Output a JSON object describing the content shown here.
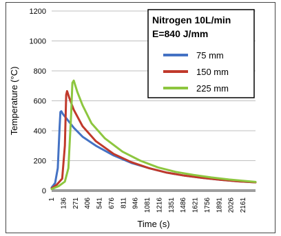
{
  "chart_data": {
    "type": "line",
    "title": "",
    "xlabel": "Time (s)",
    "ylabel": "Temperature  (°C)",
    "xlim": [
      1,
      2300
    ],
    "ylim": [
      0,
      1200
    ],
    "x_tick_labels": [
      "1",
      "136",
      "271",
      "406",
      "541",
      "676",
      "811",
      "946",
      "1081",
      "1216",
      "1351",
      "1486",
      "1621",
      "1756",
      "1891",
      "2026",
      "2161"
    ],
    "y_tick_labels": [
      "0",
      "200",
      "400",
      "600",
      "800",
      "1000",
      "1200"
    ],
    "y_ticks": [
      0,
      200,
      400,
      600,
      800,
      1000,
      1200
    ],
    "grid": "horizontal",
    "legend_position": "top-right",
    "legend": {
      "line1": "Nitrogen 10L/min",
      "line2": "E=840 J/mm"
    },
    "series": [
      {
        "name": "75 mm",
        "color": "#4472C4",
        "x": [
          1,
          40,
          70,
          90,
          100,
          110,
          130,
          170,
          250,
          350,
          500,
          700,
          900,
          1100,
          1300,
          1500,
          1700,
          1900,
          2100,
          2300
        ],
        "y": [
          20,
          50,
          150,
          420,
          525,
          530,
          510,
          480,
          420,
          360,
          300,
          235,
          185,
          150,
          120,
          100,
          85,
          72,
          62,
          55
        ]
      },
      {
        "name": "150 mm",
        "color": "#C0392B",
        "x": [
          1,
          60,
          120,
          150,
          165,
          175,
          200,
          250,
          350,
          500,
          700,
          900,
          1100,
          1300,
          1500,
          1700,
          1900,
          2100,
          2300
        ],
        "y": [
          15,
          40,
          80,
          300,
          640,
          665,
          620,
          540,
          430,
          330,
          245,
          190,
          150,
          120,
          100,
          85,
          72,
          62,
          55
        ]
      },
      {
        "name": "225 mm",
        "color": "#8DC63F",
        "x": [
          1,
          80,
          150,
          190,
          220,
          235,
          250,
          290,
          350,
          450,
          600,
          800,
          1000,
          1200,
          1400,
          1600,
          1800,
          2000,
          2200,
          2300
        ],
        "y": [
          10,
          30,
          60,
          150,
          500,
          720,
          735,
          660,
          570,
          450,
          350,
          260,
          200,
          155,
          125,
          105,
          88,
          74,
          63,
          58
        ]
      }
    ]
  }
}
